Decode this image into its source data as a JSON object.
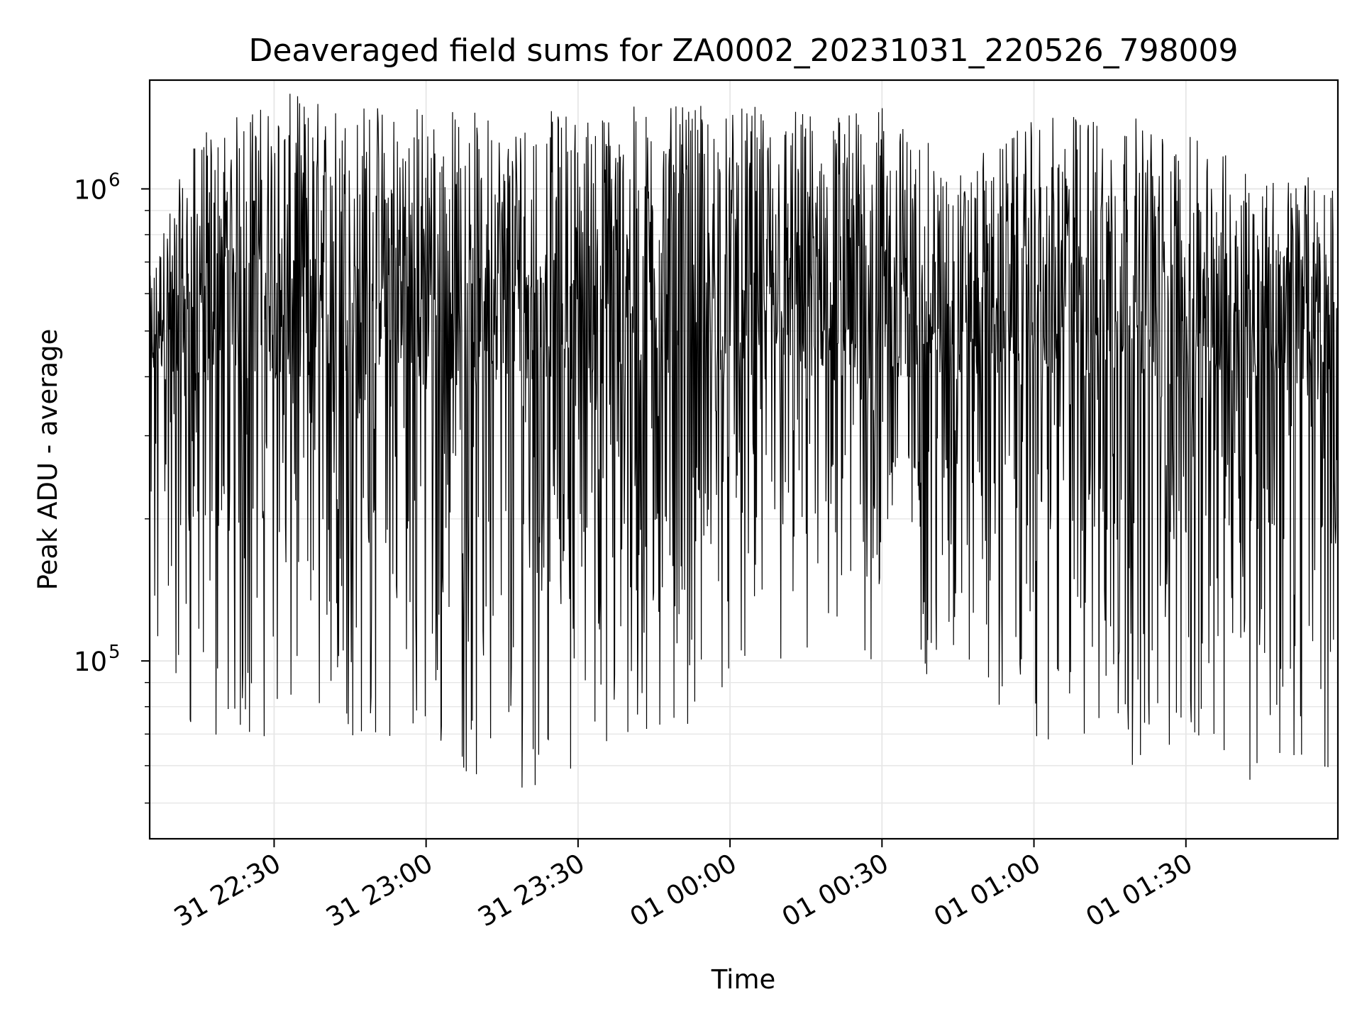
{
  "chart_data": {
    "type": "line",
    "title": "Deaveraged field sums for ZA0002_20231031_220526_798009",
    "xlabel": "Time",
    "ylabel": "Peak ADU - average",
    "yscale": "log",
    "xlim": [
      "2023-10-31T22:05:26",
      "2023-11-01T02:00:00"
    ],
    "ylim": [
      42000,
      1700000
    ],
    "x_ticks": [
      {
        "label": "31 22:30",
        "time": "2023-10-31T22:30:00"
      },
      {
        "label": "31 23:00",
        "time": "2023-10-31T23:00:00"
      },
      {
        "label": "31 23:30",
        "time": "2023-10-31T23:30:00"
      },
      {
        "label": "01 00:00",
        "time": "2023-11-01T00:00:00"
      },
      {
        "label": "01 00:30",
        "time": "2023-11-01T00:30:00"
      },
      {
        "label": "01 01:00",
        "time": "2023-11-01T01:00:00"
      },
      {
        "label": "01 01:30",
        "time": "2023-11-01T01:30:00"
      }
    ],
    "y_ticks": [
      {
        "base": "10",
        "exp": "5",
        "value": 100000
      },
      {
        "base": "10",
        "exp": "6",
        "value": 1000000
      }
    ],
    "grid": true,
    "legend": "none",
    "series_color": "#000000",
    "series": [
      {
        "sample_interval_seconds": 6,
        "envelope": [
          {
            "time": "2023-10-31T22:05:26",
            "low": 80000,
            "high": 650000
          },
          {
            "time": "2023-10-31T22:15:00",
            "low": 60000,
            "high": 1300000
          },
          {
            "time": "2023-10-31T22:30:00",
            "low": 70000,
            "high": 1600000
          },
          {
            "time": "2023-10-31T23:00:00",
            "low": 65000,
            "high": 1550000
          },
          {
            "time": "2023-10-31T23:15:00",
            "low": 50000,
            "high": 1450000
          },
          {
            "time": "2023-10-31T23:30:00",
            "low": 60000,
            "high": 1500000
          },
          {
            "time": "2023-10-31T23:45:00",
            "low": 60000,
            "high": 1500000
          },
          {
            "time": "2023-11-01T00:00:00",
            "low": 90000,
            "high": 1500000
          },
          {
            "time": "2023-11-01T00:30:00",
            "low": 95000,
            "high": 1500000
          },
          {
            "time": "2023-11-01T00:45:00",
            "low": 90000,
            "high": 1100000
          },
          {
            "time": "2023-11-01T01:00:00",
            "low": 65000,
            "high": 1400000
          },
          {
            "time": "2023-11-01T01:15:00",
            "low": 60000,
            "high": 1500000
          },
          {
            "time": "2023-11-01T01:30:00",
            "low": 60000,
            "high": 1300000
          },
          {
            "time": "2023-11-01T01:45:00",
            "low": 55000,
            "high": 1100000
          },
          {
            "time": "2023-11-01T02:00:00",
            "low": 60000,
            "high": 1050000
          }
        ],
        "typical_level": 700000
      }
    ]
  }
}
